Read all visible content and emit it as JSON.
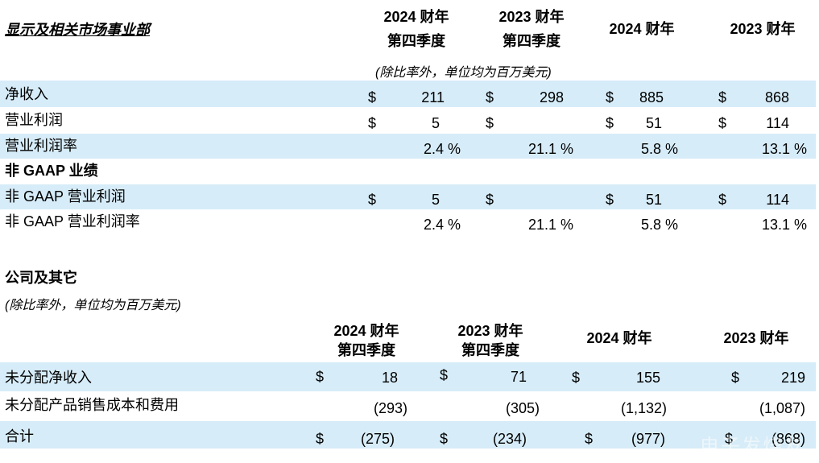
{
  "section1": {
    "title": "显示及相关市场事业部",
    "col_headers": [
      {
        "line1": "2024 财年",
        "line2": "第四季度"
      },
      {
        "line1": "2023 财年",
        "line2": "第四季度"
      },
      {
        "line1": "2024 财年",
        "line2": ""
      },
      {
        "line1": "2023 财年",
        "line2": ""
      }
    ],
    "unit_note": "(除比率外，单位均为百万美元)",
    "rows": [
      {
        "label": "净收入",
        "cells": [
          {
            "cur": "$",
            "val": "211"
          },
          {
            "cur": "$",
            "val": "298"
          },
          {
            "cur": "$",
            "val": "885"
          },
          {
            "cur": "$",
            "val": "868"
          }
        ]
      },
      {
        "label": "营业利润",
        "cells": [
          {
            "cur": "$",
            "val": "5"
          },
          {
            "cur": "$",
            "val": ""
          },
          {
            "cur": "$",
            "val": "51"
          },
          {
            "cur": "$",
            "val": "114"
          }
        ]
      },
      {
        "label": "营业利润率",
        "cells": [
          {
            "cur": "",
            "val": "2.4 %"
          },
          {
            "cur": "",
            "val": "21.1 %"
          },
          {
            "cur": "",
            "val": "5.8 %"
          },
          {
            "cur": "",
            "val": "13.1 %"
          }
        ]
      }
    ],
    "non_gaap_title": "非 GAAP 业绩",
    "non_gaap_rows": [
      {
        "label": "非 GAAP 营业利润",
        "cells": [
          {
            "cur": "$",
            "val": "5"
          },
          {
            "cur": "$",
            "val": ""
          },
          {
            "cur": "$",
            "val": "51"
          },
          {
            "cur": "$",
            "val": "114"
          }
        ]
      },
      {
        "label": "非 GAAP 营业利润率",
        "cells": [
          {
            "cur": "",
            "val": "2.4 %"
          },
          {
            "cur": "",
            "val": "21.1 %"
          },
          {
            "cur": "",
            "val": "5.8 %"
          },
          {
            "cur": "",
            "val": "13.1 %"
          }
        ]
      }
    ]
  },
  "section2": {
    "title": "公司及其它",
    "unit_note": "(除比率外，单位均为百万美元)",
    "col_headers": [
      {
        "line1": "2024 财年",
        "line2": "第四季度"
      },
      {
        "line1": "2023 财年",
        "line2": "第四季度"
      },
      {
        "line1": "2024 财年",
        "line2": ""
      },
      {
        "line1": "2023 财年",
        "line2": ""
      }
    ],
    "rows": [
      {
        "label": "未分配净收入",
        "cells": [
          {
            "cur": "$",
            "val": "18"
          },
          {
            "cur": "$",
            "val": "71"
          },
          {
            "cur": "$",
            "val": "155"
          },
          {
            "cur": "$",
            "val": "219"
          }
        ]
      },
      {
        "label": "未分配产品销售成本和费用",
        "cells": [
          {
            "cur": "",
            "val": "(293)"
          },
          {
            "cur": "",
            "val": "(305)"
          },
          {
            "cur": "",
            "val": "(1,132)"
          },
          {
            "cur": "",
            "val": "(1,087)"
          }
        ]
      },
      {
        "label": "合计",
        "cells": [
          {
            "cur": "$",
            "val": "(275)"
          },
          {
            "cur": "$",
            "val": "(234)"
          },
          {
            "cur": "$",
            "val": "(977)"
          },
          {
            "cur": "$",
            "val": "(868)"
          }
        ]
      }
    ]
  },
  "watermark": "电子发烧友",
  "colors": {
    "row_band": "#d6ecf8",
    "text": "#000000"
  }
}
